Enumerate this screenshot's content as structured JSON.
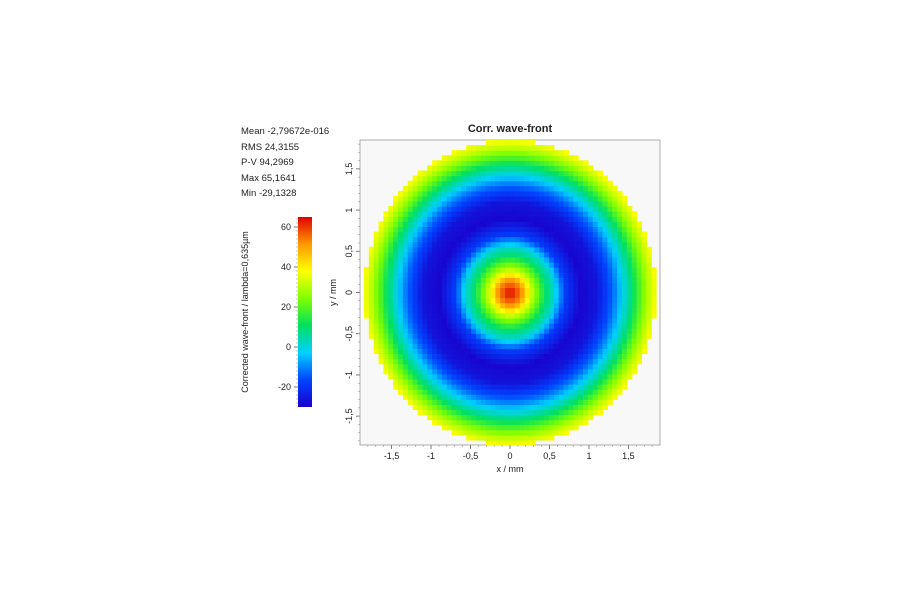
{
  "chart_data": {
    "type": "heatmap",
    "title": "Corr. wave-front",
    "xlabel": "x / mm",
    "ylabel": "y / mm",
    "xlim": [
      -1.9,
      1.9
    ],
    "ylim": [
      -1.85,
      1.85
    ],
    "aperture_radius_mm": 1.85,
    "grid": false,
    "x_ticks": [
      -1.5,
      -1,
      -0.5,
      0,
      0.5,
      1,
      1.5
    ],
    "y_ticks": [
      -1.5,
      -1,
      -0.5,
      0,
      0.5,
      1,
      1.5
    ],
    "x_tick_labels": [
      "-1,5",
      "-1",
      "-0,5",
      "0",
      "0,5",
      "1",
      "1,5"
    ],
    "y_tick_labels": [
      "-1,5",
      "-1",
      "-0,5",
      "0",
      "0,5",
      "1",
      "1,5"
    ],
    "colorbar": {
      "label": "Corrected wave-front / lambda=0,635µm",
      "range": [
        -30,
        65
      ],
      "ticks": [
        -20,
        0,
        20,
        40,
        60
      ],
      "tick_labels": [
        "-20",
        "0",
        "20",
        "40",
        "60"
      ],
      "colormap": [
        "#1a00cc",
        "#0044ff",
        "#00d0ff",
        "#00e060",
        "#80ff00",
        "#ffff00",
        "#ff9900",
        "#e00000"
      ]
    },
    "radial_profile": {
      "r_mm": [
        0,
        0.15,
        0.3,
        0.45,
        0.55,
        0.7,
        0.9,
        1.1,
        1.3,
        1.5,
        1.65,
        1.75,
        1.85
      ],
      "value": [
        65,
        52,
        28,
        10,
        2,
        -18,
        -29,
        -26,
        -13,
        5,
        20,
        30,
        38
      ]
    }
  },
  "stats": {
    "mean": "Mean -2,79672e-016",
    "rms": "RMS 24,3155",
    "pv": "P-V 94,2969",
    "max": "Max 65,1641",
    "min": "Min -29,1328"
  }
}
